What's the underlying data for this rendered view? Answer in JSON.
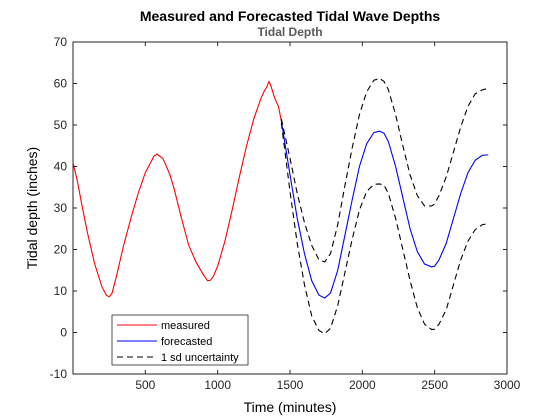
{
  "chart_data": {
    "type": "line",
    "title": "Measured and Forecasted Tidal Wave Depths",
    "subtitle": "Tidal Depth",
    "xlabel": "Time (minutes)",
    "ylabel": "Tidal depth (inches)",
    "xlim": [
      0,
      3000
    ],
    "ylim": [
      -10,
      70
    ],
    "xticks": [
      500,
      1000,
      1500,
      2000,
      2500,
      3000
    ],
    "yticks": [
      -10,
      0,
      10,
      20,
      30,
      40,
      50,
      60,
      70
    ],
    "grid": false,
    "legend_position": "bottom-left",
    "series": [
      {
        "name": "measured",
        "color": "#ff0000",
        "style": "solid",
        "x": [
          0,
          30,
          60,
          100,
          150,
          200,
          230,
          250,
          270,
          300,
          350,
          400,
          450,
          500,
          530,
          560,
          580,
          600,
          620,
          640,
          670,
          700,
          750,
          800,
          850,
          900,
          930,
          950,
          970,
          1000,
          1050,
          1100,
          1150,
          1200,
          1250,
          1300,
          1320,
          1340,
          1355,
          1370,
          1385,
          1400,
          1420,
          1440
        ],
        "y": [
          41,
          36.5,
          31,
          24,
          16.5,
          11,
          9,
          8.6,
          9.5,
          13.5,
          21,
          27.5,
          33.5,
          38.5,
          40.5,
          42.5,
          43,
          42.5,
          42,
          40.5,
          38,
          34.5,
          27.5,
          21,
          17,
          14,
          12.5,
          12.6,
          13.5,
          16,
          22,
          29.5,
          37.5,
          45,
          51.5,
          56.5,
          58,
          59.2,
          60.5,
          59.2,
          57.5,
          56,
          54.5,
          51
        ]
      },
      {
        "name": "forecasted",
        "color": "#0000ff",
        "style": "solid",
        "x": [
          1440,
          1500,
          1550,
          1600,
          1650,
          1700,
          1740,
          1780,
          1830,
          1880,
          1930,
          1980,
          2030,
          2080,
          2120,
          2150,
          2180,
          2230,
          2280,
          2330,
          2380,
          2430,
          2480,
          2500,
          2530,
          2580,
          2630,
          2680,
          2730,
          2780,
          2830,
          2870
        ],
        "y": [
          51,
          38,
          27.5,
          19,
          12.5,
          9,
          8.3,
          9.5,
          15,
          23.5,
          32,
          40,
          45.5,
          48.2,
          48.5,
          48,
          46,
          40,
          32.5,
          25,
          19.5,
          16.5,
          15.8,
          16,
          17.5,
          21.5,
          27.5,
          33.5,
          38.5,
          41.5,
          42.7,
          42.8
        ]
      },
      {
        "name": "1 sd uncertainty",
        "color": "#000000",
        "style": "dashed",
        "x": [
          1440,
          1500,
          1550,
          1600,
          1650,
          1700,
          1740,
          1780,
          1830,
          1880,
          1930,
          1980,
          2030,
          2080,
          2120,
          2150,
          2180,
          2230,
          2280,
          2330,
          2380,
          2430,
          2480,
          2500,
          2530,
          2580,
          2630,
          2680,
          2730,
          2780,
          2830,
          2870
        ],
        "y": [
          51.5,
          42,
          33.5,
          26.5,
          21,
          17.5,
          17,
          19,
          26,
          35.5,
          44.5,
          52.5,
          58,
          60.8,
          61.2,
          60.5,
          58.5,
          52.5,
          45,
          38,
          33,
          30.5,
          30.5,
          31,
          33,
          37.5,
          43.5,
          49.5,
          54.5,
          57.5,
          58.5,
          58.8
        ]
      },
      {
        "name": "",
        "color": "#000000",
        "style": "dashed",
        "legend": false,
        "x": [
          1440,
          1500,
          1550,
          1600,
          1650,
          1700,
          1740,
          1780,
          1830,
          1880,
          1930,
          1980,
          2030,
          2080,
          2120,
          2150,
          2180,
          2230,
          2280,
          2330,
          2380,
          2430,
          2480,
          2500,
          2530,
          2580,
          2630,
          2680,
          2730,
          2780,
          2830,
          2870
        ],
        "y": [
          50.5,
          34,
          21.5,
          11.5,
          4,
          0.5,
          -0.3,
          1,
          6.5,
          14.5,
          22.5,
          29.5,
          34,
          35.7,
          35.8,
          35.5,
          33.5,
          27.5,
          20,
          12.5,
          6,
          2,
          0.7,
          0.8,
          2,
          5.5,
          11.5,
          17.5,
          22,
          24.8,
          26,
          26.2
        ]
      }
    ]
  }
}
